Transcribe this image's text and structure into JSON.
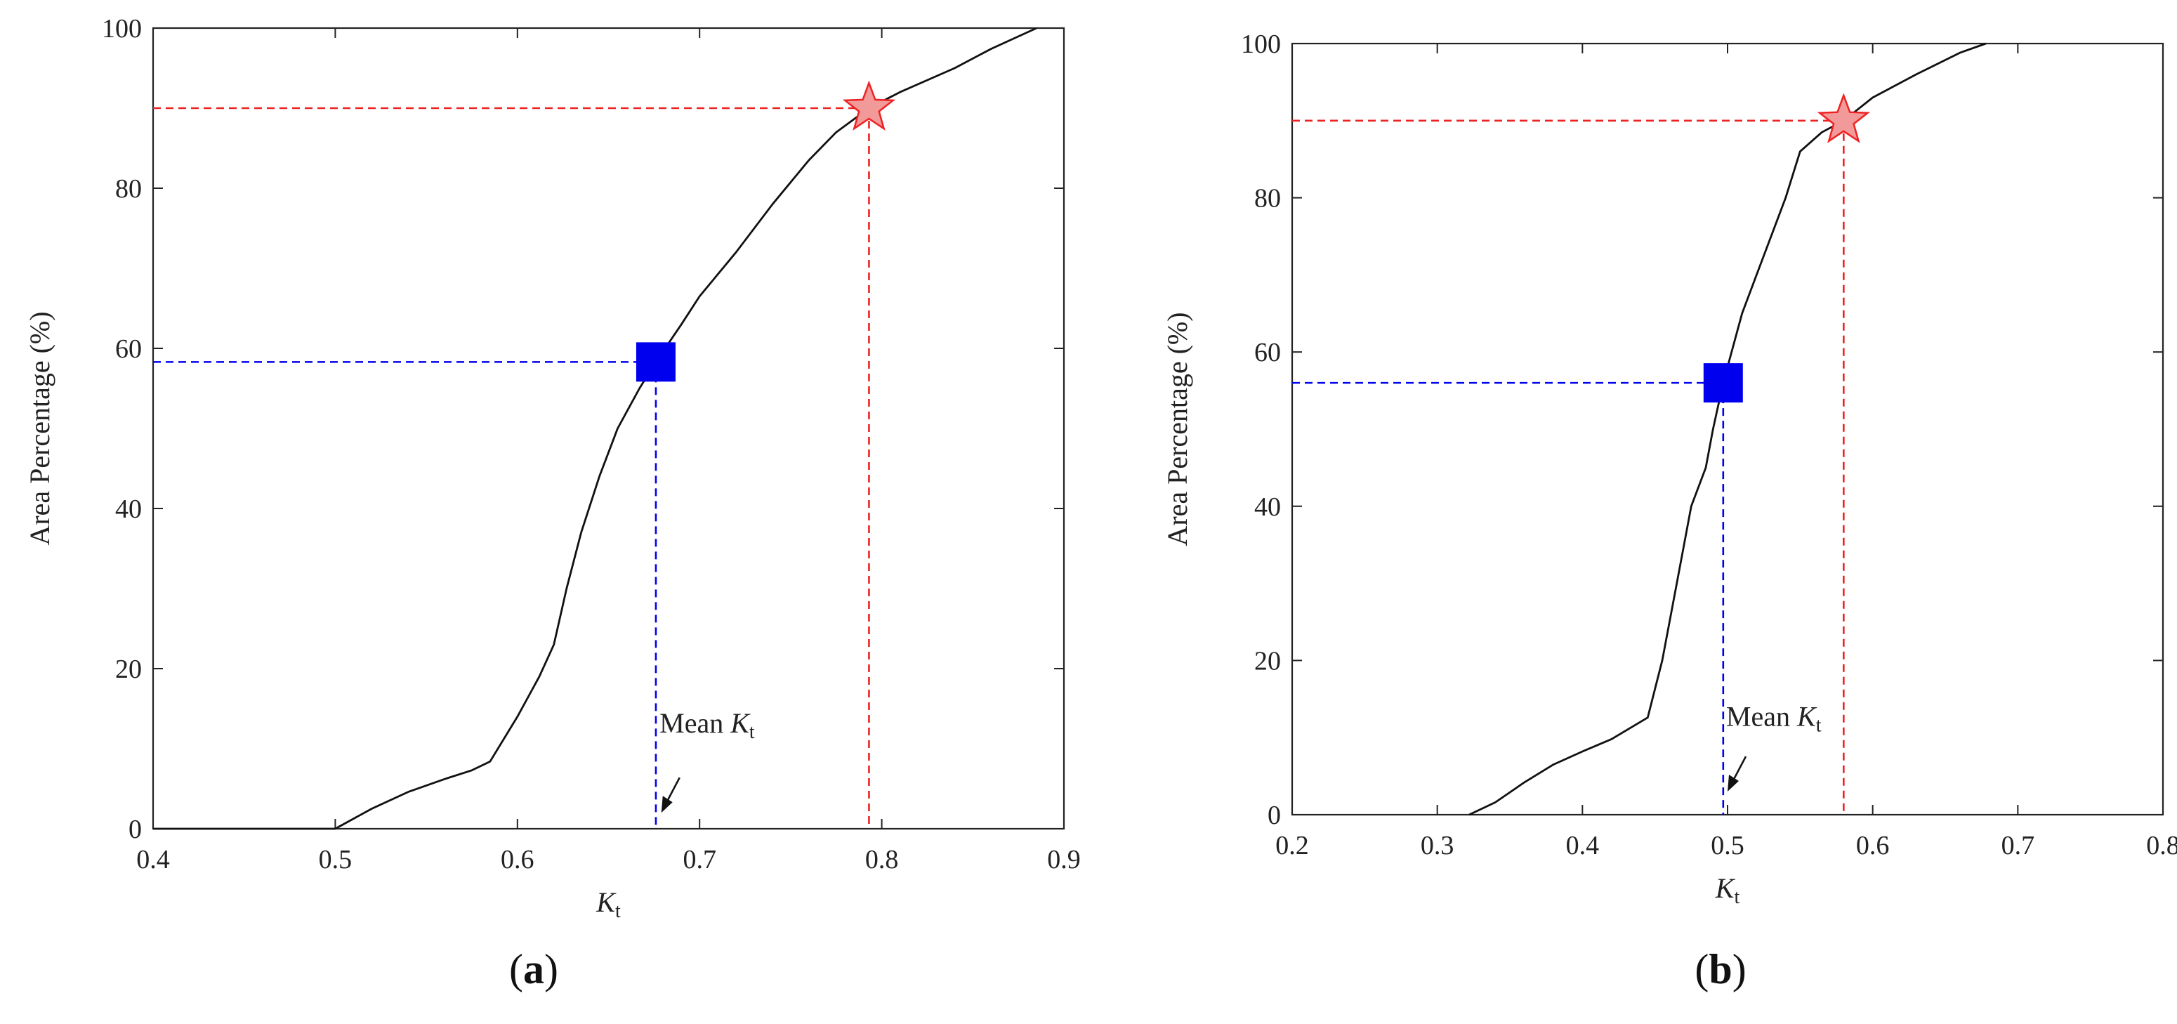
{
  "chart_data": [
    {
      "type": "line",
      "panel_label": "a",
      "xlabel": "Kt",
      "xlabel_main": "K",
      "xlabel_sub": "t",
      "ylabel": "Area Percentage (%)",
      "xlim": [
        0.4,
        0.9
      ],
      "ylim": [
        0,
        100
      ],
      "xticks": [
        0.4,
        0.5,
        0.6,
        0.7,
        0.8,
        0.9
      ],
      "xtick_labels": [
        "0.4",
        "0.5",
        "0.6",
        "0.7",
        "0.8",
        "0.9"
      ],
      "yticks": [
        0,
        20,
        40,
        60,
        80,
        100
      ],
      "ytick_labels": [
        "0",
        "20",
        "40",
        "60",
        "80",
        "100"
      ],
      "grid": false,
      "series": [
        {
          "color": "#111111",
          "points": [
            [
              0.4,
              0
            ],
            [
              0.5,
              0
            ],
            [
              0.52,
              2.5
            ],
            [
              0.54,
              4.6
            ],
            [
              0.56,
              6.2
            ],
            [
              0.575,
              7.3
            ],
            [
              0.585,
              8.4
            ],
            [
              0.6,
              14
            ],
            [
              0.612,
              19
            ],
            [
              0.62,
              23
            ],
            [
              0.627,
              30
            ],
            [
              0.635,
              37
            ],
            [
              0.645,
              44
            ],
            [
              0.655,
              50
            ],
            [
              0.667,
              55
            ],
            [
              0.676,
              58.3
            ],
            [
              0.69,
              63
            ],
            [
              0.7,
              66.5
            ],
            [
              0.72,
              72
            ],
            [
              0.74,
              78
            ],
            [
              0.76,
              83.5
            ],
            [
              0.775,
              87
            ],
            [
              0.793,
              90
            ],
            [
              0.81,
              92
            ],
            [
              0.84,
              95
            ],
            [
              0.86,
              97.4
            ],
            [
              0.885,
              100
            ]
          ]
        }
      ],
      "mean": {
        "x": 0.676,
        "y": 58.3,
        "color": "#0000ee"
      },
      "p90": {
        "x": 0.793,
        "y": 90,
        "color": "#ee2222",
        "fill": "#f29a9a"
      },
      "annotation": {
        "text_main": "Mean ",
        "text_var": "K",
        "text_sub": "t",
        "tx": 0.678,
        "ty": 12,
        "ax": 0.679,
        "ay": 2
      }
    },
    {
      "type": "line",
      "panel_label": "b",
      "xlabel": "Kt",
      "xlabel_main": "K",
      "xlabel_sub": "t",
      "ylabel": "Area Percentage (%)",
      "xlim": [
        0.2,
        0.8
      ],
      "ylim": [
        0,
        100
      ],
      "xticks": [
        0.2,
        0.3,
        0.4,
        0.5,
        0.6,
        0.7,
        0.8
      ],
      "xtick_labels": [
        "0.2",
        "0.3",
        "0.4",
        "0.5",
        "0.6",
        "0.7",
        "0.8"
      ],
      "yticks": [
        0,
        20,
        40,
        60,
        80,
        100
      ],
      "ytick_labels": [
        "0",
        "20",
        "40",
        "60",
        "80",
        "100"
      ],
      "grid": false,
      "series": [
        {
          "color": "#111111",
          "points": [
            [
              0.322,
              0
            ],
            [
              0.34,
              1.6
            ],
            [
              0.36,
              4.2
            ],
            [
              0.38,
              6.5
            ],
            [
              0.4,
              8.2
            ],
            [
              0.42,
              9.8
            ],
            [
              0.445,
              12.6
            ],
            [
              0.455,
              20
            ],
            [
              0.465,
              30
            ],
            [
              0.475,
              40
            ],
            [
              0.485,
              45
            ],
            [
              0.49,
              50
            ],
            [
              0.497,
              56
            ],
            [
              0.51,
              65
            ],
            [
              0.52,
              70
            ],
            [
              0.53,
              75
            ],
            [
              0.54,
              80
            ],
            [
              0.55,
              86
            ],
            [
              0.565,
              88.5
            ],
            [
              0.58,
              90
            ],
            [
              0.6,
              93
            ],
            [
              0.63,
              96
            ],
            [
              0.66,
              98.8
            ],
            [
              0.678,
              100
            ]
          ]
        }
      ],
      "mean": {
        "x": 0.497,
        "y": 56,
        "color": "#0000ee"
      },
      "p90": {
        "x": 0.58,
        "y": 90,
        "color": "#ee2222",
        "fill": "#f29a9a"
      },
      "annotation": {
        "text_main": "Mean ",
        "text_var": "K",
        "text_sub": "t",
        "tx": 0.499,
        "ty": 11.5,
        "ax": 0.5,
        "ay": 3
      }
    }
  ]
}
